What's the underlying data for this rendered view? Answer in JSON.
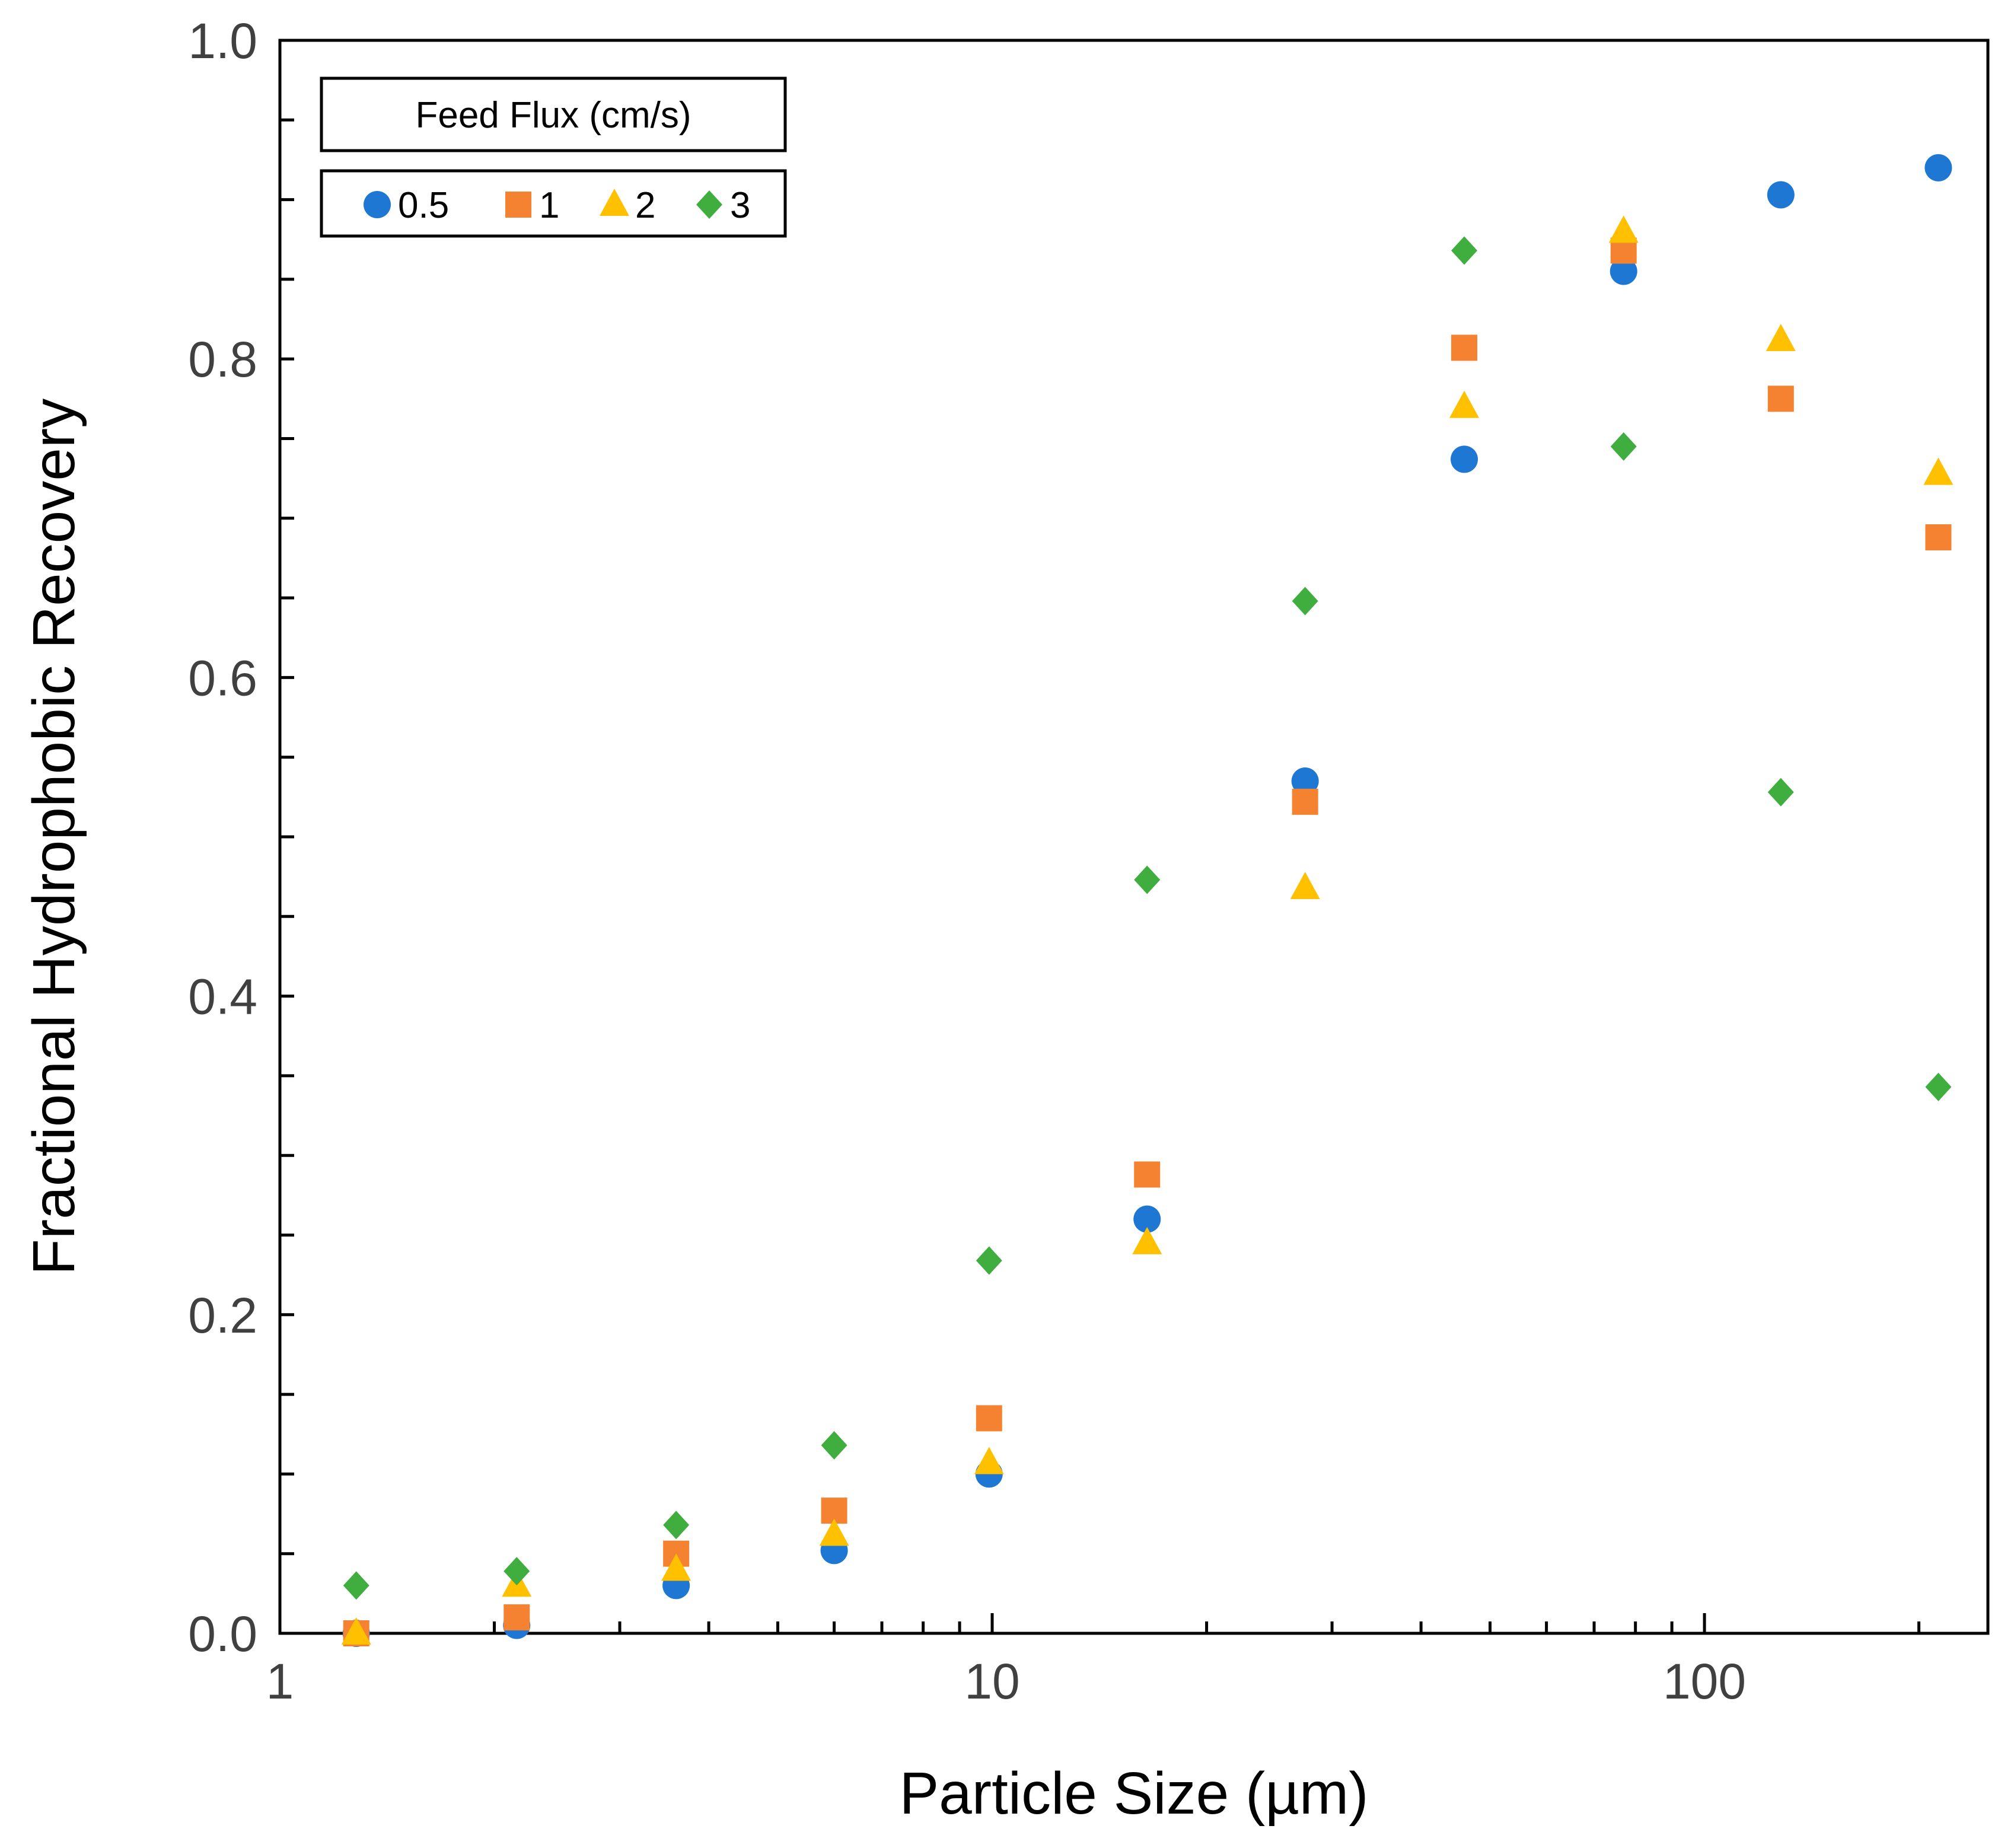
{
  "chart_data": {
    "type": "scatter",
    "title": "",
    "xlabel": "Particle Size (µm)",
    "ylabel": "Fractional Hydrophobic Recovery",
    "xscale": "log",
    "xlim": [
      1,
      250
    ],
    "ylim": [
      0.0,
      1.0
    ],
    "x_ticks": [
      1,
      10,
      100
    ],
    "x_tick_labels": [
      "1",
      "10",
      "100"
    ],
    "y_ticks": [
      0.0,
      0.2,
      0.4,
      0.6,
      0.8,
      1.0
    ],
    "y_tick_labels": [
      "0.0",
      "0.2",
      "0.4",
      "0.6",
      "0.8",
      "1.0"
    ],
    "grid": false,
    "legend": {
      "title": "Feed Flux (cm/s)",
      "placement": "top-left"
    },
    "x": [
      1.28,
      2.15,
      3.6,
      6.0,
      9.9,
      16.5,
      27.5,
      46,
      77,
      128,
      213
    ],
    "series": [
      {
        "name": "0.5",
        "marker": "circle",
        "color": "#1f77d4",
        "values": [
          0.0,
          0.005,
          0.03,
          0.052,
          0.1,
          0.26,
          0.535,
          0.737,
          0.855,
          0.903,
          0.92
        ]
      },
      {
        "name": "1",
        "marker": "square",
        "color": "#f58231",
        "values": [
          0.0,
          0.01,
          0.05,
          0.077,
          0.135,
          0.288,
          0.522,
          0.807,
          0.868,
          0.775,
          0.688
        ]
      },
      {
        "name": "2",
        "marker": "triangle",
        "color": "#ffc000",
        "values": [
          0.0,
          0.03,
          0.04,
          0.062,
          0.107,
          0.245,
          0.468,
          0.77,
          0.88,
          0.812,
          0.728
        ]
      },
      {
        "name": "3",
        "marker": "diamond",
        "color": "#3fae3f",
        "values": [
          0.03,
          0.039,
          0.068,
          0.118,
          0.234,
          0.473,
          0.648,
          0.868,
          0.745,
          0.528,
          0.343
        ]
      }
    ]
  }
}
